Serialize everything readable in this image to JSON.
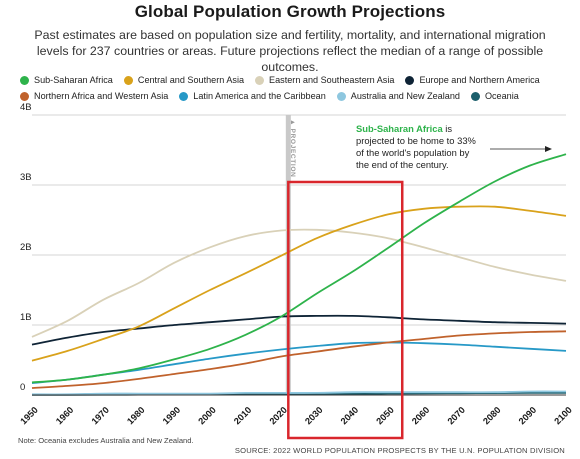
{
  "title": "Global Population Growth Projections",
  "subtitle": "Past estimates are based on population size and fertility, mortality, and international migration levels for 237 countries or areas. Future projections reflect the median of a range of possible outcomes.",
  "note": "Note: Oceania excludes Australia and New Zealand.",
  "source": "SOURCE: 2022 WORLD POPULATION PROSPECTS BY THE U.N. POPULATION DIVISION",
  "chart_data": {
    "type": "line",
    "xlim": [
      1950,
      2100
    ],
    "ylim": [
      0,
      4
    ],
    "x_ticks": [
      "1950",
      "1960",
      "1970",
      "1980",
      "1990",
      "2000",
      "2010",
      "2020",
      "2030",
      "2040",
      "2050",
      "2060",
      "2070",
      "2080",
      "2090",
      "2100"
    ],
    "y_ticks": [
      {
        "v": 0,
        "label": "0"
      },
      {
        "v": 1,
        "label": "1B"
      },
      {
        "v": 2,
        "label": "2B"
      },
      {
        "v": 3,
        "label": "3B"
      },
      {
        "v": 4,
        "label": "4B"
      }
    ],
    "grid": "horizontal",
    "legend_position": "top",
    "projection_label": "▲ PROJECTION",
    "projection_year": 2022,
    "highlight_range": [
      2022,
      2054
    ],
    "highlight_color": "#d9262c",
    "annotation": {
      "bold": "Sub-Saharan Africa",
      "lines": [
        "is",
        "projected to be home to 33%",
        "of the world's population by",
        "the end of the century."
      ]
    },
    "x": [
      1950,
      1960,
      1970,
      1980,
      1990,
      2000,
      2010,
      2020,
      2030,
      2040,
      2050,
      2060,
      2070,
      2080,
      2090,
      2100
    ],
    "series": [
      {
        "name": "Sub-Saharan Africa",
        "color": "#2eb34b",
        "values": [
          0.18,
          0.22,
          0.29,
          0.38,
          0.51,
          0.66,
          0.86,
          1.12,
          1.45,
          1.76,
          2.1,
          2.45,
          2.76,
          3.05,
          3.28,
          3.44
        ]
      },
      {
        "name": "Central and Southern Asia",
        "color": "#d9a21b",
        "values": [
          0.49,
          0.63,
          0.8,
          0.98,
          1.24,
          1.5,
          1.74,
          1.99,
          2.24,
          2.43,
          2.58,
          2.66,
          2.69,
          2.69,
          2.63,
          2.56
        ]
      },
      {
        "name": "Eastern and Southeastern Asia",
        "color": "#d9d1b8",
        "values": [
          0.83,
          1.06,
          1.36,
          1.6,
          1.89,
          2.11,
          2.27,
          2.35,
          2.36,
          2.32,
          2.24,
          2.11,
          1.97,
          1.83,
          1.72,
          1.63
        ]
      },
      {
        "name": "Europe and Northern America",
        "color": "#0f2436",
        "values": [
          0.72,
          0.82,
          0.9,
          0.95,
          1.0,
          1.04,
          1.08,
          1.12,
          1.13,
          1.13,
          1.11,
          1.08,
          1.06,
          1.04,
          1.03,
          1.02
        ]
      },
      {
        "name": "Northern Africa and Western Asia",
        "color": "#c0622c",
        "values": [
          0.1,
          0.13,
          0.17,
          0.23,
          0.3,
          0.37,
          0.45,
          0.55,
          0.62,
          0.69,
          0.75,
          0.8,
          0.85,
          0.88,
          0.9,
          0.91
        ]
      },
      {
        "name": "Latin America and the Caribbean",
        "color": "#2799c7",
        "values": [
          0.17,
          0.22,
          0.29,
          0.36,
          0.44,
          0.52,
          0.59,
          0.65,
          0.7,
          0.74,
          0.75,
          0.74,
          0.72,
          0.69,
          0.66,
          0.63
        ]
      },
      {
        "name": "Australia and New Zealand",
        "color": "#8ec7df",
        "values": [
          0.01,
          0.01,
          0.02,
          0.02,
          0.02,
          0.02,
          0.03,
          0.03,
          0.03,
          0.04,
          0.04,
          0.04,
          0.04,
          0.04,
          0.05,
          0.05
        ]
      },
      {
        "name": "Oceania",
        "color": "#1c5f6c",
        "values": [
          0.002,
          0.003,
          0.004,
          0.005,
          0.006,
          0.008,
          0.01,
          0.013,
          0.015,
          0.018,
          0.021,
          0.024,
          0.026,
          0.028,
          0.03,
          0.031
        ]
      }
    ],
    "legend_rows": [
      [
        0,
        1,
        2,
        3
      ],
      [
        4,
        5,
        6,
        7
      ]
    ]
  }
}
